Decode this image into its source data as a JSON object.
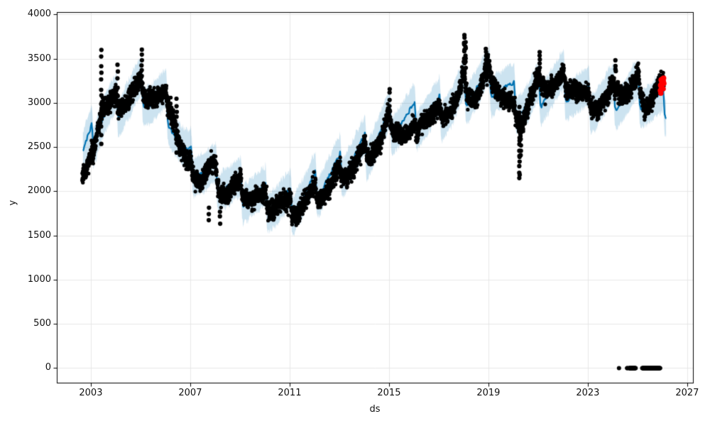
{
  "chart_data": {
    "type": "line",
    "subtype": "prophet-forecast-with-scatter-and-uncertainty-band",
    "title": "",
    "xlabel": "ds",
    "ylabel": "y",
    "x_ticks": [
      "2003",
      "2007",
      "2011",
      "2015",
      "2019",
      "2023",
      "2027"
    ],
    "x_tick_values": [
      2003,
      2007,
      2011,
      2015,
      2019,
      2023,
      2027
    ],
    "y_ticks": [
      "0",
      "500",
      "1000",
      "1500",
      "2000",
      "2500",
      "3000",
      "3500",
      "4000"
    ],
    "y_tick_values": [
      0,
      500,
      1000,
      1500,
      2000,
      2500,
      3000,
      3500,
      4000
    ],
    "xlim": [
      2001.63,
      2027.26
    ],
    "ylim": [
      -173,
      4028
    ],
    "grid": true,
    "grid_color": "#e7e7e7",
    "legend": false,
    "colors": {
      "actual_points": "#000000",
      "forecast_line": "#0072b2",
      "uncertainty_band": "#0072b2",
      "uncertainty_band_opacity": 0.2,
      "highlight_points": "#ff0000",
      "axes": "#000000"
    },
    "seasonal_profile": [
      [
        0.0,
        150
      ],
      [
        0.03,
        195
      ],
      [
        0.055,
        90
      ],
      [
        0.09,
        -110
      ],
      [
        0.14,
        -150
      ],
      [
        0.22,
        -115
      ],
      [
        0.32,
        -75
      ],
      [
        0.42,
        -40
      ],
      [
        0.52,
        -5
      ],
      [
        0.62,
        30
      ],
      [
        0.72,
        70
      ],
      [
        0.82,
        110
      ],
      [
        0.9,
        135
      ],
      [
        1.0,
        150
      ]
    ],
    "series": [
      {
        "name": "actual",
        "type": "scatter",
        "color": "#000000",
        "marker_radius": 2.6,
        "noise_sd": 52,
        "seasonal_weight": 0.45,
        "x_range": [
          2002.65,
          2026.06
        ],
        "trend_knots": [
          [
            2002.65,
            2150
          ],
          [
            2002.85,
            2230
          ],
          [
            2003.05,
            2420
          ],
          [
            2003.25,
            2700
          ],
          [
            2003.45,
            2950
          ],
          [
            2003.65,
            2930
          ],
          [
            2003.95,
            3020
          ],
          [
            2004.25,
            2980
          ],
          [
            2004.6,
            3060
          ],
          [
            2004.95,
            3180
          ],
          [
            2005.1,
            3150
          ],
          [
            2005.45,
            3060
          ],
          [
            2006.0,
            3030
          ],
          [
            2006.25,
            2950
          ],
          [
            2006.55,
            2520
          ],
          [
            2006.85,
            2300
          ],
          [
            2007.1,
            2220
          ],
          [
            2007.45,
            2100
          ],
          [
            2007.7,
            2250
          ],
          [
            2007.95,
            2280
          ],
          [
            2008.2,
            2020
          ],
          [
            2008.45,
            1950
          ],
          [
            2008.75,
            2030
          ],
          [
            2009.0,
            2080
          ],
          [
            2009.3,
            1930
          ],
          [
            2009.65,
            1920
          ],
          [
            2010.0,
            1900
          ],
          [
            2010.25,
            1810
          ],
          [
            2010.6,
            1870
          ],
          [
            2011.0,
            1820
          ],
          [
            2011.25,
            1760
          ],
          [
            2011.6,
            1880
          ],
          [
            2012.0,
            1990
          ],
          [
            2012.35,
            1950
          ],
          [
            2012.7,
            2070
          ],
          [
            2013.0,
            2230
          ],
          [
            2013.3,
            2200
          ],
          [
            2013.65,
            2280
          ],
          [
            2014.0,
            2480
          ],
          [
            2014.3,
            2440
          ],
          [
            2014.65,
            2530
          ],
          [
            2015.0,
            2830
          ],
          [
            2015.2,
            2720
          ],
          [
            2015.5,
            2630
          ],
          [
            2015.8,
            2620
          ],
          [
            2016.1,
            2740
          ],
          [
            2016.4,
            2840
          ],
          [
            2016.75,
            2820
          ],
          [
            2017.05,
            2920
          ],
          [
            2017.4,
            2890
          ],
          [
            2017.75,
            3010
          ],
          [
            2018.0,
            3280
          ],
          [
            2018.25,
            3080
          ],
          [
            2018.55,
            3030
          ],
          [
            2018.85,
            3280
          ],
          [
            2019.05,
            3380
          ],
          [
            2019.3,
            3170
          ],
          [
            2019.6,
            3040
          ],
          [
            2019.9,
            2960
          ],
          [
            2020.15,
            2870
          ],
          [
            2020.32,
            2760
          ],
          [
            2020.55,
            2920
          ],
          [
            2020.85,
            3120
          ],
          [
            2021.05,
            3290
          ],
          [
            2021.35,
            3190
          ],
          [
            2021.7,
            3170
          ],
          [
            2022.0,
            3280
          ],
          [
            2022.3,
            3190
          ],
          [
            2022.65,
            3110
          ],
          [
            2023.0,
            3030
          ],
          [
            2023.35,
            2960
          ],
          [
            2023.7,
            3010
          ],
          [
            2024.0,
            3130
          ],
          [
            2024.15,
            3220
          ],
          [
            2024.45,
            3090
          ],
          [
            2024.75,
            3140
          ],
          [
            2025.05,
            3260
          ],
          [
            2025.3,
            2930
          ],
          [
            2025.6,
            3040
          ],
          [
            2025.85,
            3160
          ],
          [
            2026.06,
            3200
          ]
        ]
      },
      {
        "name": "forecast_yhat",
        "type": "line",
        "color": "#0072b2",
        "line_width": 2.2,
        "x_range": [
          2002.68,
          2026.15
        ],
        "trend_knots": [
          [
            2002.68,
            2400
          ],
          [
            2003.0,
            2580
          ],
          [
            2003.5,
            2850
          ],
          [
            2004.0,
            2950
          ],
          [
            2004.5,
            3050
          ],
          [
            2005.0,
            3150
          ],
          [
            2005.4,
            3020
          ],
          [
            2006.0,
            3000
          ],
          [
            2006.4,
            2650
          ],
          [
            2006.8,
            2380
          ],
          [
            2007.2,
            2280
          ],
          [
            2007.6,
            2200
          ],
          [
            2008.0,
            2150
          ],
          [
            2008.5,
            2060
          ],
          [
            2009.0,
            2000
          ],
          [
            2009.5,
            1950
          ],
          [
            2010.0,
            1900
          ],
          [
            2010.5,
            1860
          ],
          [
            2011.0,
            1860
          ],
          [
            2011.5,
            1910
          ],
          [
            2012.0,
            2050
          ],
          [
            2012.5,
            2130
          ],
          [
            2013.0,
            2250
          ],
          [
            2013.5,
            2350
          ],
          [
            2014.0,
            2450
          ],
          [
            2014.5,
            2580
          ],
          [
            2015.0,
            2750
          ],
          [
            2015.5,
            2780
          ],
          [
            2016.0,
            2820
          ],
          [
            2016.5,
            2860
          ],
          [
            2017.0,
            2900
          ],
          [
            2017.5,
            2960
          ],
          [
            2018.0,
            3100
          ],
          [
            2018.5,
            3160
          ],
          [
            2019.0,
            3250
          ],
          [
            2019.5,
            3160
          ],
          [
            2020.0,
            3060
          ],
          [
            2020.35,
            2950
          ],
          [
            2020.7,
            3010
          ],
          [
            2021.0,
            3100
          ],
          [
            2021.5,
            3160
          ],
          [
            2022.0,
            3200
          ],
          [
            2022.5,
            3110
          ],
          [
            2023.0,
            3010
          ],
          [
            2023.5,
            3010
          ],
          [
            2024.0,
            3060
          ],
          [
            2024.5,
            3060
          ],
          [
            2025.0,
            3110
          ],
          [
            2025.5,
            3010
          ],
          [
            2026.0,
            2960
          ],
          [
            2026.15,
            2980
          ]
        ]
      },
      {
        "name": "uncertainty_band",
        "type": "band",
        "color": "#0072b2",
        "opacity": 0.2,
        "halfwidth": 190,
        "edge_jag": 60,
        "x_range": [
          2002.68,
          2026.15
        ]
      },
      {
        "name": "recent_highlight",
        "type": "scatter",
        "color": "#ff0000",
        "marker_radius": 3.8,
        "points": [
          [
            2025.92,
            3140
          ],
          [
            2025.93,
            3200
          ],
          [
            2025.94,
            3110
          ],
          [
            2025.95,
            3260
          ],
          [
            2025.96,
            3180
          ],
          [
            2025.98,
            3230
          ],
          [
            2026.0,
            3270
          ],
          [
            2026.01,
            3210
          ],
          [
            2026.03,
            3160
          ],
          [
            2026.04,
            3240
          ],
          [
            2026.05,
            3280
          ],
          [
            2026.06,
            3220
          ]
        ]
      },
      {
        "name": "zero_values",
        "type": "scatter",
        "color": "#000000",
        "marker_radius": 3.0,
        "y": 0,
        "runs": [
          [
            2024.255,
            2024.265
          ],
          [
            2024.58,
            2024.6
          ],
          [
            2024.66,
            2024.93
          ],
          [
            2025.19,
            2025.91
          ]
        ]
      },
      {
        "name": "outlier_streaks",
        "type": "scatter",
        "color": "#000000",
        "marker_radius": 3.1,
        "streaks": [
          {
            "t": 2003.42,
            "y_top": 3600,
            "y_bottom": 2550,
            "n": 13
          },
          {
            "t": 2004.08,
            "y_top": 3450,
            "y_bottom": 2900,
            "n": 7
          },
          {
            "t": 2005.05,
            "y_top": 3600,
            "y_bottom": 3300,
            "n": 6
          },
          {
            "t": 2006.45,
            "y_top": 3050,
            "y_bottom": 2450,
            "n": 9
          },
          {
            "t": 2007.75,
            "y_top": 1800,
            "y_bottom": 1680,
            "n": 3
          },
          {
            "t": 2008.2,
            "y_top": 1760,
            "y_bottom": 1650,
            "n": 3
          },
          {
            "t": 2010.35,
            "y_top": 1770,
            "y_bottom": 1690,
            "n": 3
          },
          {
            "t": 2015.03,
            "y_top": 3150,
            "y_bottom": 3050,
            "n": 3
          },
          {
            "t": 2018.03,
            "y_top": 3780,
            "y_bottom": 3350,
            "n": 11
          },
          {
            "t": 2018.08,
            "y_top": 3700,
            "y_bottom": 3400,
            "n": 7
          },
          {
            "t": 2018.9,
            "y_top": 3610,
            "y_bottom": 3350,
            "n": 7
          },
          {
            "t": 2020.25,
            "y_top": 2950,
            "y_bottom": 2130,
            "n": 18
          },
          {
            "t": 2020.3,
            "y_top": 2850,
            "y_bottom": 2400,
            "n": 8
          },
          {
            "t": 2021.07,
            "y_top": 3570,
            "y_bottom": 3400,
            "n": 5
          },
          {
            "t": 2024.12,
            "y_top": 3480,
            "y_bottom": 3350,
            "n": 4
          }
        ]
      }
    ]
  }
}
